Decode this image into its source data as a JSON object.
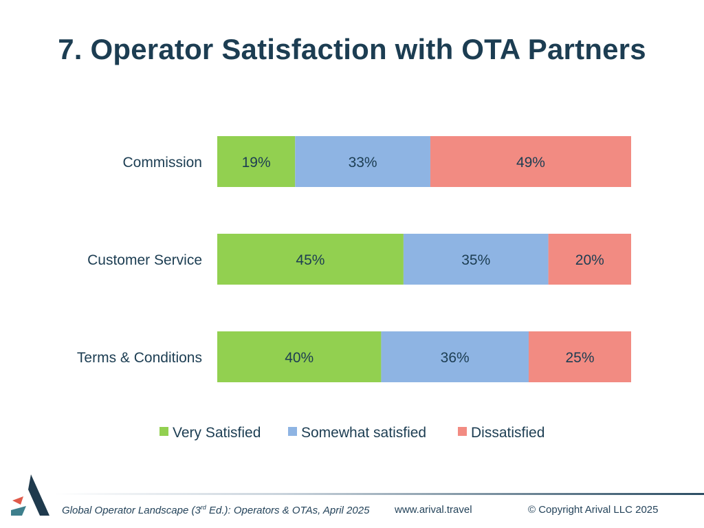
{
  "header": {
    "title": "7. Operator Satisfaction with OTA Partners"
  },
  "chart_data": {
    "type": "bar",
    "orientation": "horizontal",
    "stacked": true,
    "categories": [
      "Commission",
      "Customer Service",
      "Terms & Conditions"
    ],
    "series": [
      {
        "name": "Very Satisfied",
        "color": "#92d050",
        "values": [
          19,
          45,
          40
        ],
        "labels": [
          "19%",
          "45%",
          "40%"
        ]
      },
      {
        "name": "Somewhat satisfied",
        "color": "#8eb4e3",
        "values": [
          33,
          35,
          36
        ],
        "labels": [
          "33%",
          "35%",
          "36%"
        ]
      },
      {
        "name": "Dissatisfied",
        "color": "#f28b82",
        "values": [
          49,
          20,
          25
        ],
        "labels": [
          "49%",
          "20%",
          "25%"
        ]
      }
    ],
    "legend_position": "bottom",
    "grid": false
  },
  "footer": {
    "source_italic": "Global Operator Landscape (3",
    "source_sup": "rd",
    "source_italic2": " Ed.):",
    "source_rest": "  Operators & OTAs, April 2025",
    "website": "www.arival.travel",
    "copyright": "© Copyright Arival LLC 2025"
  },
  "logo": {
    "icon": "arival-logo-icon",
    "colors": {
      "dark": "#1f3a4d",
      "accent": "#e05a4a",
      "teal": "#3e7f8c"
    }
  }
}
